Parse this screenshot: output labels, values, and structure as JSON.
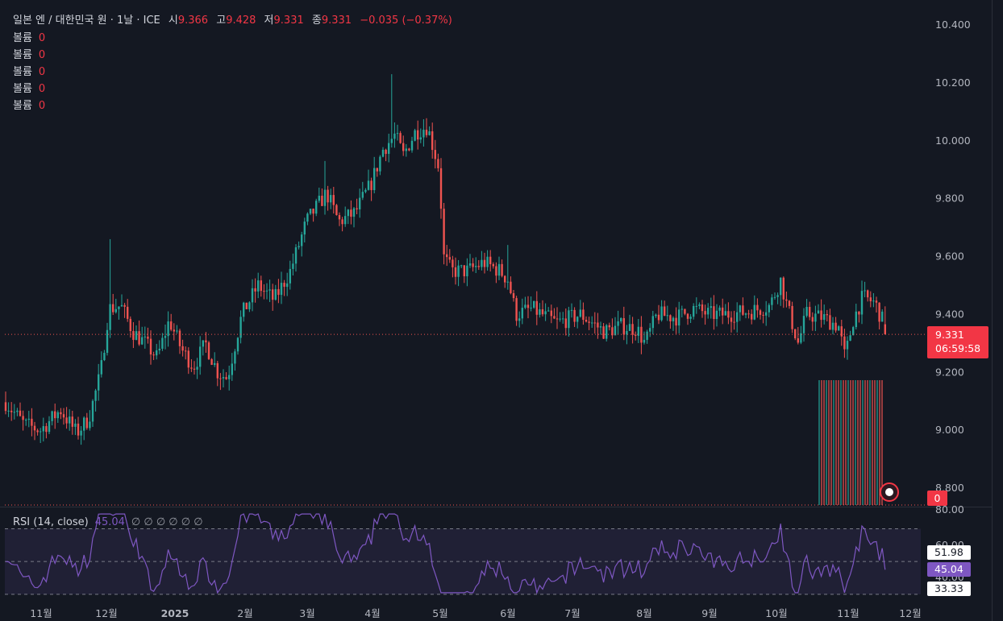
{
  "legend": {
    "title": "일본 엔 / 대한민국 원 · 1날 · ICE",
    "open_label": "시",
    "open": "9.366",
    "high_label": "고",
    "high": "9.428",
    "low_label": "저",
    "low": "9.331",
    "close_label": "종",
    "close": "9.331",
    "change": "−0.035 (−0.37%)"
  },
  "volume_rows": [
    {
      "label": "볼륨",
      "value": "0"
    },
    {
      "label": "볼륨",
      "value": "0"
    },
    {
      "label": "볼륨",
      "value": "0"
    },
    {
      "label": "볼륨",
      "value": "0"
    },
    {
      "label": "볼륨",
      "value": "0"
    }
  ],
  "price_tag": {
    "price": "9.331",
    "countdown": "06:59:58"
  },
  "volume_tag": "0",
  "rsi": {
    "label": "RSI (14, close)",
    "value": "45.04",
    "extra": "∅ ∅ ∅ ∅ ∅ ∅",
    "upper_band": "51.98",
    "lower_band": "33.33",
    "axis_ticks": [
      "80.00",
      "60.00",
      "40.00"
    ]
  },
  "colors": {
    "up": "#26a69a",
    "down": "#ef5350",
    "rsi": "#7e57c2",
    "background": "#141822"
  },
  "chart_data": [
    {
      "type": "candlestick",
      "title": "일본 엔 / 대한민국 원 · 1날 · ICE",
      "y_ticks": [
        8.8,
        9.0,
        9.2,
        9.4,
        9.6,
        9.8,
        10.0,
        10.2,
        10.4
      ],
      "ylim": [
        8.75,
        10.45
      ],
      "x_ticks": [
        "11월",
        "12월",
        "2025",
        "2월",
        "3월",
        "4월",
        "5월",
        "6월",
        "7월",
        "8월",
        "9월",
        "10월",
        "11월",
        "12월"
      ],
      "ohlc_approx_by_month": [
        {
          "month": "11월",
          "open": 9.12,
          "high": 9.18,
          "low": 8.96,
          "close": 9.05
        },
        {
          "month": "12월",
          "open": 9.05,
          "high": 9.66,
          "low": 9.13,
          "close": 9.32
        },
        {
          "month": "2025",
          "open": 9.32,
          "high": 9.38,
          "low": 9.13,
          "close": 9.28
        },
        {
          "month": "2월",
          "open": 9.28,
          "high": 9.6,
          "low": 9.14,
          "close": 9.55
        },
        {
          "month": "3월",
          "open": 9.55,
          "high": 9.92,
          "low": 9.5,
          "close": 9.86
        },
        {
          "month": "4월",
          "open": 9.86,
          "high": 10.23,
          "low": 9.76,
          "close": 10.02
        },
        {
          "month": "5월",
          "open": 10.02,
          "high": 10.1,
          "low": 9.48,
          "close": 9.56
        },
        {
          "month": "6월",
          "open": 9.56,
          "high": 9.64,
          "low": 9.35,
          "close": 9.4
        },
        {
          "month": "7월",
          "open": 9.4,
          "high": 9.45,
          "low": 9.3,
          "close": 9.36
        },
        {
          "month": "8월",
          "open": 9.36,
          "high": 9.48,
          "low": 9.22,
          "close": 9.4
        },
        {
          "month": "9월",
          "open": 9.4,
          "high": 9.49,
          "low": 9.33,
          "close": 9.42
        },
        {
          "month": "10월",
          "open": 9.42,
          "high": 9.55,
          "low": 9.27,
          "close": 9.36
        },
        {
          "month": "11월",
          "open": 9.36,
          "high": 9.53,
          "low": 9.23,
          "close": 9.331
        }
      ],
      "last_close": 9.331
    },
    {
      "type": "line",
      "title": "RSI (14, close)",
      "yticks": [
        80,
        60,
        40
      ],
      "bands": [
        51.98,
        33.33
      ],
      "ylim": [
        28,
        82
      ],
      "last_value": 45.04
    }
  ]
}
